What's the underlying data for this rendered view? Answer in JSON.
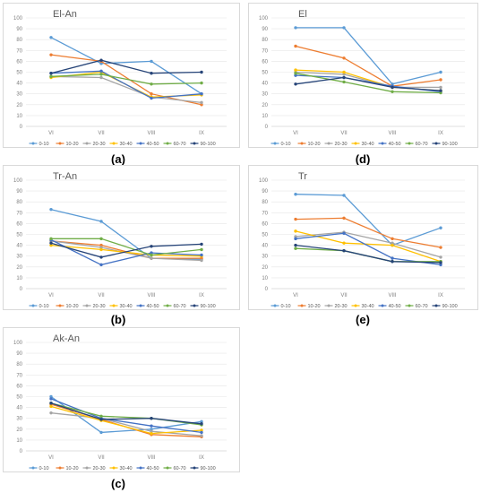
{
  "figure": {
    "captions": [
      "(a)",
      "(b)",
      "(c)",
      "(d)",
      "(e)"
    ],
    "legend_labels": [
      "0-10",
      "10-20",
      "20-30",
      "30-40",
      "40-50",
      "60-70",
      "90-100"
    ],
    "colors": [
      "#5b9bd5",
      "#ed7d31",
      "#a5a5a5",
      "#ffc000",
      "#4472c4",
      "#70ad47",
      "#264478"
    ]
  },
  "chart_data": [
    {
      "type": "line",
      "title": "El-An",
      "categories": [
        "VI",
        "VII",
        "VIII",
        "IX"
      ],
      "ylim": [
        0,
        100
      ],
      "yticks": [
        0,
        10,
        20,
        30,
        40,
        50,
        60,
        70,
        80,
        90,
        100
      ],
      "grid": true,
      "legend": "bottom",
      "series": [
        {
          "name": "0-10",
          "values": [
            82,
            58,
            60,
            30
          ]
        },
        {
          "name": "10-20",
          "values": [
            66,
            60,
            30,
            20
          ]
        },
        {
          "name": "20-30",
          "values": [
            46,
            45,
            27,
            22
          ]
        },
        {
          "name": "30-40",
          "values": [
            45,
            50,
            27,
            29
          ]
        },
        {
          "name": "40-50",
          "values": [
            49,
            51,
            26,
            30
          ]
        },
        {
          "name": "60-70",
          "values": [
            46,
            48,
            39,
            40
          ]
        },
        {
          "name": "90-100",
          "values": [
            49,
            61,
            49,
            50
          ]
        }
      ]
    },
    {
      "type": "line",
      "title": "Tr-An",
      "categories": [
        "VI",
        "VII",
        "VIII",
        "IX"
      ],
      "ylim": [
        0,
        100
      ],
      "yticks": [
        0,
        10,
        20,
        30,
        40,
        50,
        60,
        70,
        80,
        90,
        100
      ],
      "grid": true,
      "legend": "bottom",
      "series": [
        {
          "name": "0-10",
          "values": [
            73,
            62,
            28,
            27
          ]
        },
        {
          "name": "10-20",
          "values": [
            44,
            40,
            28,
            28
          ]
        },
        {
          "name": "20-30",
          "values": [
            44,
            38,
            28,
            26
          ]
        },
        {
          "name": "30-40",
          "values": [
            40,
            36,
            31,
            30
          ]
        },
        {
          "name": "40-50",
          "values": [
            45,
            22,
            33,
            31
          ]
        },
        {
          "name": "60-70",
          "values": [
            46,
            46,
            31,
            36
          ]
        },
        {
          "name": "90-100",
          "values": [
            42,
            29,
            39,
            41
          ]
        }
      ]
    },
    {
      "type": "line",
      "title": "Ak-An",
      "categories": [
        "VI",
        "VII",
        "VIII",
        "IX"
      ],
      "ylim": [
        0,
        100
      ],
      "yticks": [
        0,
        10,
        20,
        30,
        40,
        50,
        60,
        70,
        80,
        90,
        100
      ],
      "grid": true,
      "legend": "bottom",
      "series": [
        {
          "name": "0-10",
          "values": [
            50,
            17,
            20,
            27
          ]
        },
        {
          "name": "10-20",
          "values": [
            43,
            29,
            15,
            13
          ]
        },
        {
          "name": "20-30",
          "values": [
            35,
            30,
            18,
            14
          ]
        },
        {
          "name": "30-40",
          "values": [
            41,
            28,
            16,
            19
          ]
        },
        {
          "name": "40-50",
          "values": [
            48,
            30,
            23,
            17
          ]
        },
        {
          "name": "60-70",
          "values": [
            44,
            32,
            30,
            24
          ]
        },
        {
          "name": "90-100",
          "values": [
            44,
            29,
            30,
            25
          ]
        }
      ]
    },
    {
      "type": "line",
      "title": "El",
      "categories": [
        "VI",
        "VII",
        "VIII",
        "IX"
      ],
      "ylim": [
        0,
        100
      ],
      "yticks": [
        0,
        10,
        20,
        30,
        40,
        50,
        60,
        70,
        80,
        90,
        100
      ],
      "grid": true,
      "legend": "bottom",
      "series": [
        {
          "name": "0-10",
          "values": [
            91,
            91,
            39,
            50
          ]
        },
        {
          "name": "10-20",
          "values": [
            74,
            63,
            37,
            43
          ]
        },
        {
          "name": "20-30",
          "values": [
            50,
            48,
            36,
            36
          ]
        },
        {
          "name": "30-40",
          "values": [
            52,
            50,
            36,
            33
          ]
        },
        {
          "name": "40-50",
          "values": [
            47,
            45,
            37,
            32
          ]
        },
        {
          "name": "60-70",
          "values": [
            49,
            41,
            32,
            31
          ]
        },
        {
          "name": "90-100",
          "values": [
            39,
            45,
            36,
            33
          ]
        }
      ]
    },
    {
      "type": "line",
      "title": "Tr",
      "categories": [
        "VI",
        "VII",
        "VIII",
        "IX"
      ],
      "ylim": [
        0,
        100
      ],
      "yticks": [
        0,
        10,
        20,
        30,
        40,
        50,
        60,
        70,
        80,
        90,
        100
      ],
      "grid": true,
      "legend": "bottom",
      "series": [
        {
          "name": "0-10",
          "values": [
            87,
            86,
            40,
            56
          ]
        },
        {
          "name": "10-20",
          "values": [
            64,
            65,
            46,
            38
          ]
        },
        {
          "name": "20-30",
          "values": [
            48,
            52,
            42,
            29
          ]
        },
        {
          "name": "30-40",
          "values": [
            53,
            42,
            40,
            25
          ]
        },
        {
          "name": "40-50",
          "values": [
            46,
            51,
            28,
            22
          ]
        },
        {
          "name": "60-70",
          "values": [
            37,
            35,
            25,
            25
          ]
        },
        {
          "name": "90-100",
          "values": [
            40,
            35,
            25,
            24
          ]
        }
      ]
    }
  ]
}
